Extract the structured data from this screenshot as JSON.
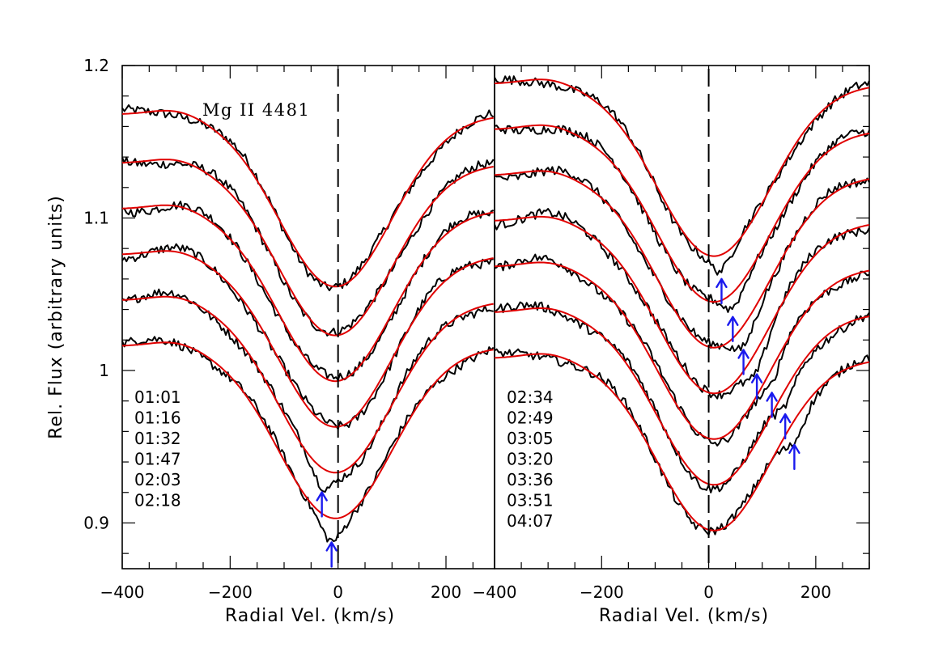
{
  "chart_data": [
    {
      "type": "line",
      "panel": "left",
      "title": "Mg II 4481",
      "xlabel": "Radial Vel. (km/s)",
      "ylabel": "Rel. Flux (arbitrary units)",
      "xlim": [
        -400,
        290
      ],
      "ylim": [
        0.87,
        1.2
      ],
      "xticks": [
        -400,
        -200,
        0,
        200
      ],
      "xtick_labels": [
        "−400",
        "−200",
        "0",
        "200"
      ],
      "yticks": [
        0.9,
        1.0,
        1.1,
        1.2
      ],
      "ytick_labels": [
        "0.9",
        "1",
        "1.1",
        "1.2"
      ],
      "reference_line_x": 0,
      "times": [
        "01:01",
        "01:16",
        "01:32",
        "01:47",
        "02:03",
        "02:18"
      ],
      "series": [
        {
          "name": "01:01",
          "offset": 1.168,
          "depth": 0.113,
          "center": -5,
          "arrow_velocity": null
        },
        {
          "name": "01:16",
          "offset": 1.136,
          "depth": 0.113,
          "center": -5,
          "arrow_velocity": null
        },
        {
          "name": "01:32",
          "offset": 1.106,
          "depth": 0.113,
          "center": -5,
          "arrow_velocity": null
        },
        {
          "name": "01:47",
          "offset": 1.076,
          "depth": 0.113,
          "center": -5,
          "arrow_velocity": null
        },
        {
          "name": "02:03",
          "offset": 1.046,
          "depth": 0.113,
          "center": -5,
          "arrow_velocity": -30
        },
        {
          "name": "02:18",
          "offset": 1.016,
          "depth": 0.113,
          "center": -5,
          "arrow_velocity": -12
        }
      ]
    },
    {
      "type": "line",
      "panel": "right",
      "xlabel": "Radial Vel. (km/s)",
      "xlim": [
        -400,
        300
      ],
      "ylim": [
        0.87,
        1.2
      ],
      "xticks": [
        -400,
        -200,
        0,
        200
      ],
      "xtick_labels": [
        "−400",
        "−200",
        "0",
        "200"
      ],
      "reference_line_x": 0,
      "times": [
        "02:34",
        "02:49",
        "03:05",
        "03:20",
        "03:36",
        "03:51",
        "04:07"
      ],
      "series": [
        {
          "name": "02:34",
          "offset": 1.188,
          "depth": 0.113,
          "center": 10,
          "arrow_velocity": 24
        },
        {
          "name": "02:49",
          "offset": 1.158,
          "depth": 0.113,
          "center": 10,
          "arrow_velocity": 45
        },
        {
          "name": "03:05",
          "offset": 1.128,
          "depth": 0.113,
          "center": 10,
          "arrow_velocity": 65
        },
        {
          "name": "03:20",
          "offset": 1.098,
          "depth": 0.113,
          "center": 10,
          "arrow_velocity": 90
        },
        {
          "name": "03:36",
          "offset": 1.068,
          "depth": 0.113,
          "center": 10,
          "arrow_velocity": 118
        },
        {
          "name": "03:51",
          "offset": 1.038,
          "depth": 0.113,
          "center": 10,
          "arrow_velocity": 143
        },
        {
          "name": "04:07",
          "offset": 1.008,
          "depth": 0.113,
          "center": 10,
          "arrow_velocity": 160
        }
      ]
    }
  ]
}
